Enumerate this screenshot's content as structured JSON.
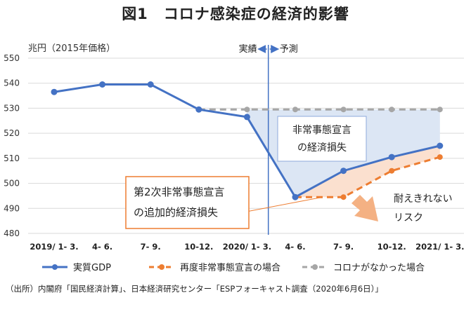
{
  "title": "図1　コロナ感染症の経済的影響",
  "source": "（出所）内閣府「国民経済計算」、日本経済研究センター「ESPフォーキャスト調査（2020年6月6日）」",
  "colors": {
    "actual": "#4472c4",
    "reemergency": "#ed7d31",
    "nocorona": "#a6a6a6",
    "blue_area": "#dce6f4",
    "orange_area": "#fbe0cf",
    "box_border": "#ed7d31",
    "divider": "#4472c4"
  },
  "chart_data": {
    "type": "line",
    "title": "図1　コロナ感染症の経済的影響",
    "ylabel": "兆円（2015年価格）",
    "xlabel": "",
    "ylim": [
      480,
      550
    ],
    "yticks": [
      480,
      490,
      500,
      510,
      520,
      530,
      540,
      550
    ],
    "grid": true,
    "legend_position": "bottom",
    "categories": [
      "2019/ 1- 3.",
      "4- 6.",
      "7- 9.",
      "10-12.",
      "2020/ 1- 3.",
      "4- 6.",
      "7- 9.",
      "10-12.",
      "2021/ 1- 3."
    ],
    "series": [
      {
        "name": "実質GDP",
        "style": "solid",
        "values": [
          536.5,
          539.5,
          539.5,
          529.5,
          526.5,
          494.5,
          505.0,
          510.5,
          515.0
        ]
      },
      {
        "name": "再度非常事態宣言の場合",
        "style": "dashed",
        "values": [
          null,
          null,
          null,
          null,
          null,
          494.5,
          494.5,
          505.0,
          510.5
        ]
      },
      {
        "name": "コロナがなかった場合",
        "style": "dashed",
        "values": [
          null,
          null,
          null,
          529.5,
          529.5,
          529.5,
          529.5,
          529.5,
          529.5
        ]
      }
    ],
    "divider_after_index": 4,
    "divider_labels": {
      "left": "実績",
      "right": "予測"
    },
    "annotations": {
      "blue_loss": [
        "非常事態宣言",
        "の経済損失"
      ],
      "orange_loss": [
        "第2次非常事態宣言",
        "の追加的経済損失"
      ],
      "risk": [
        "耐えきれない",
        "リスク"
      ]
    }
  }
}
